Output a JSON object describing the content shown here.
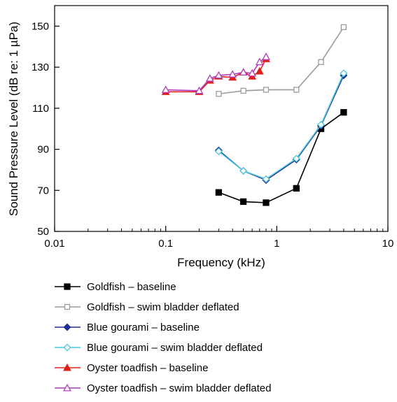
{
  "chart_data": {
    "type": "line",
    "xlabel": "Frequency (kHz)",
    "ylabel": "Sound Pressure Level (dB re: 1 µPa)",
    "x_scale": "log",
    "xlim": [
      0.01,
      10
    ],
    "ylim": [
      50,
      160
    ],
    "x_ticks": [
      {
        "value": 0.01,
        "label": "0.01"
      },
      {
        "value": 0.1,
        "label": "0.1"
      },
      {
        "value": 1,
        "label": "1"
      },
      {
        "value": 10,
        "label": "10"
      }
    ],
    "y_ticks": [
      {
        "value": 50,
        "label": "50"
      },
      {
        "value": 70,
        "label": "70"
      },
      {
        "value": 90,
        "label": "90"
      },
      {
        "value": 110,
        "label": "110"
      },
      {
        "value": 130,
        "label": "130"
      },
      {
        "value": 150,
        "label": "150"
      }
    ],
    "grid": false,
    "legend_position": "bottom",
    "series": [
      {
        "name": "Goldfish – baseline",
        "color": "#000000",
        "marker": "square-filled",
        "x": [
          0.3,
          0.5,
          0.8,
          1.5,
          2.5,
          4
        ],
        "y": [
          69,
          64.5,
          64,
          71,
          100,
          108
        ]
      },
      {
        "name": "Goldfish – swim bladder deflated",
        "color": "#9b9b9b",
        "marker": "square-open",
        "x": [
          0.3,
          0.5,
          0.8,
          1.5,
          2.5,
          4
        ],
        "y": [
          117,
          118.5,
          119,
          119,
          132.5,
          149.5
        ]
      },
      {
        "name": "Blue gourami – baseline",
        "color": "#1f2e8f",
        "marker": "diamond-filled",
        "x": [
          0.3,
          0.5,
          0.8,
          1.5,
          2.5,
          4
        ],
        "y": [
          89.5,
          79.5,
          75,
          85,
          101.5,
          126
        ]
      },
      {
        "name": "Blue gourami – swim bladder deflated",
        "color": "#4cc6dc",
        "marker": "diamond-open",
        "x": [
          0.3,
          0.5,
          0.8,
          1.5,
          2.5,
          4
        ],
        "y": [
          89,
          79.5,
          75.5,
          85.5,
          102,
          127
        ]
      },
      {
        "name": "Oyster toadfish – baseline",
        "color": "#e0201b",
        "marker": "triangle-filled",
        "x": [
          0.1,
          0.2,
          0.25,
          0.3,
          0.4,
          0.5,
          0.6,
          0.7,
          0.8
        ],
        "y": [
          118,
          118,
          123.5,
          125.5,
          125,
          127.5,
          125.5,
          128,
          134
        ]
      },
      {
        "name": "Oyster toadfish – swim bladder deflated",
        "color": "#b13bbf",
        "marker": "triangle-open",
        "x": [
          0.1,
          0.2,
          0.25,
          0.3,
          0.4,
          0.5,
          0.6,
          0.7,
          0.8
        ],
        "y": [
          119,
          118.5,
          124.5,
          126,
          126.5,
          127.5,
          127,
          132.5,
          135
        ]
      }
    ]
  }
}
